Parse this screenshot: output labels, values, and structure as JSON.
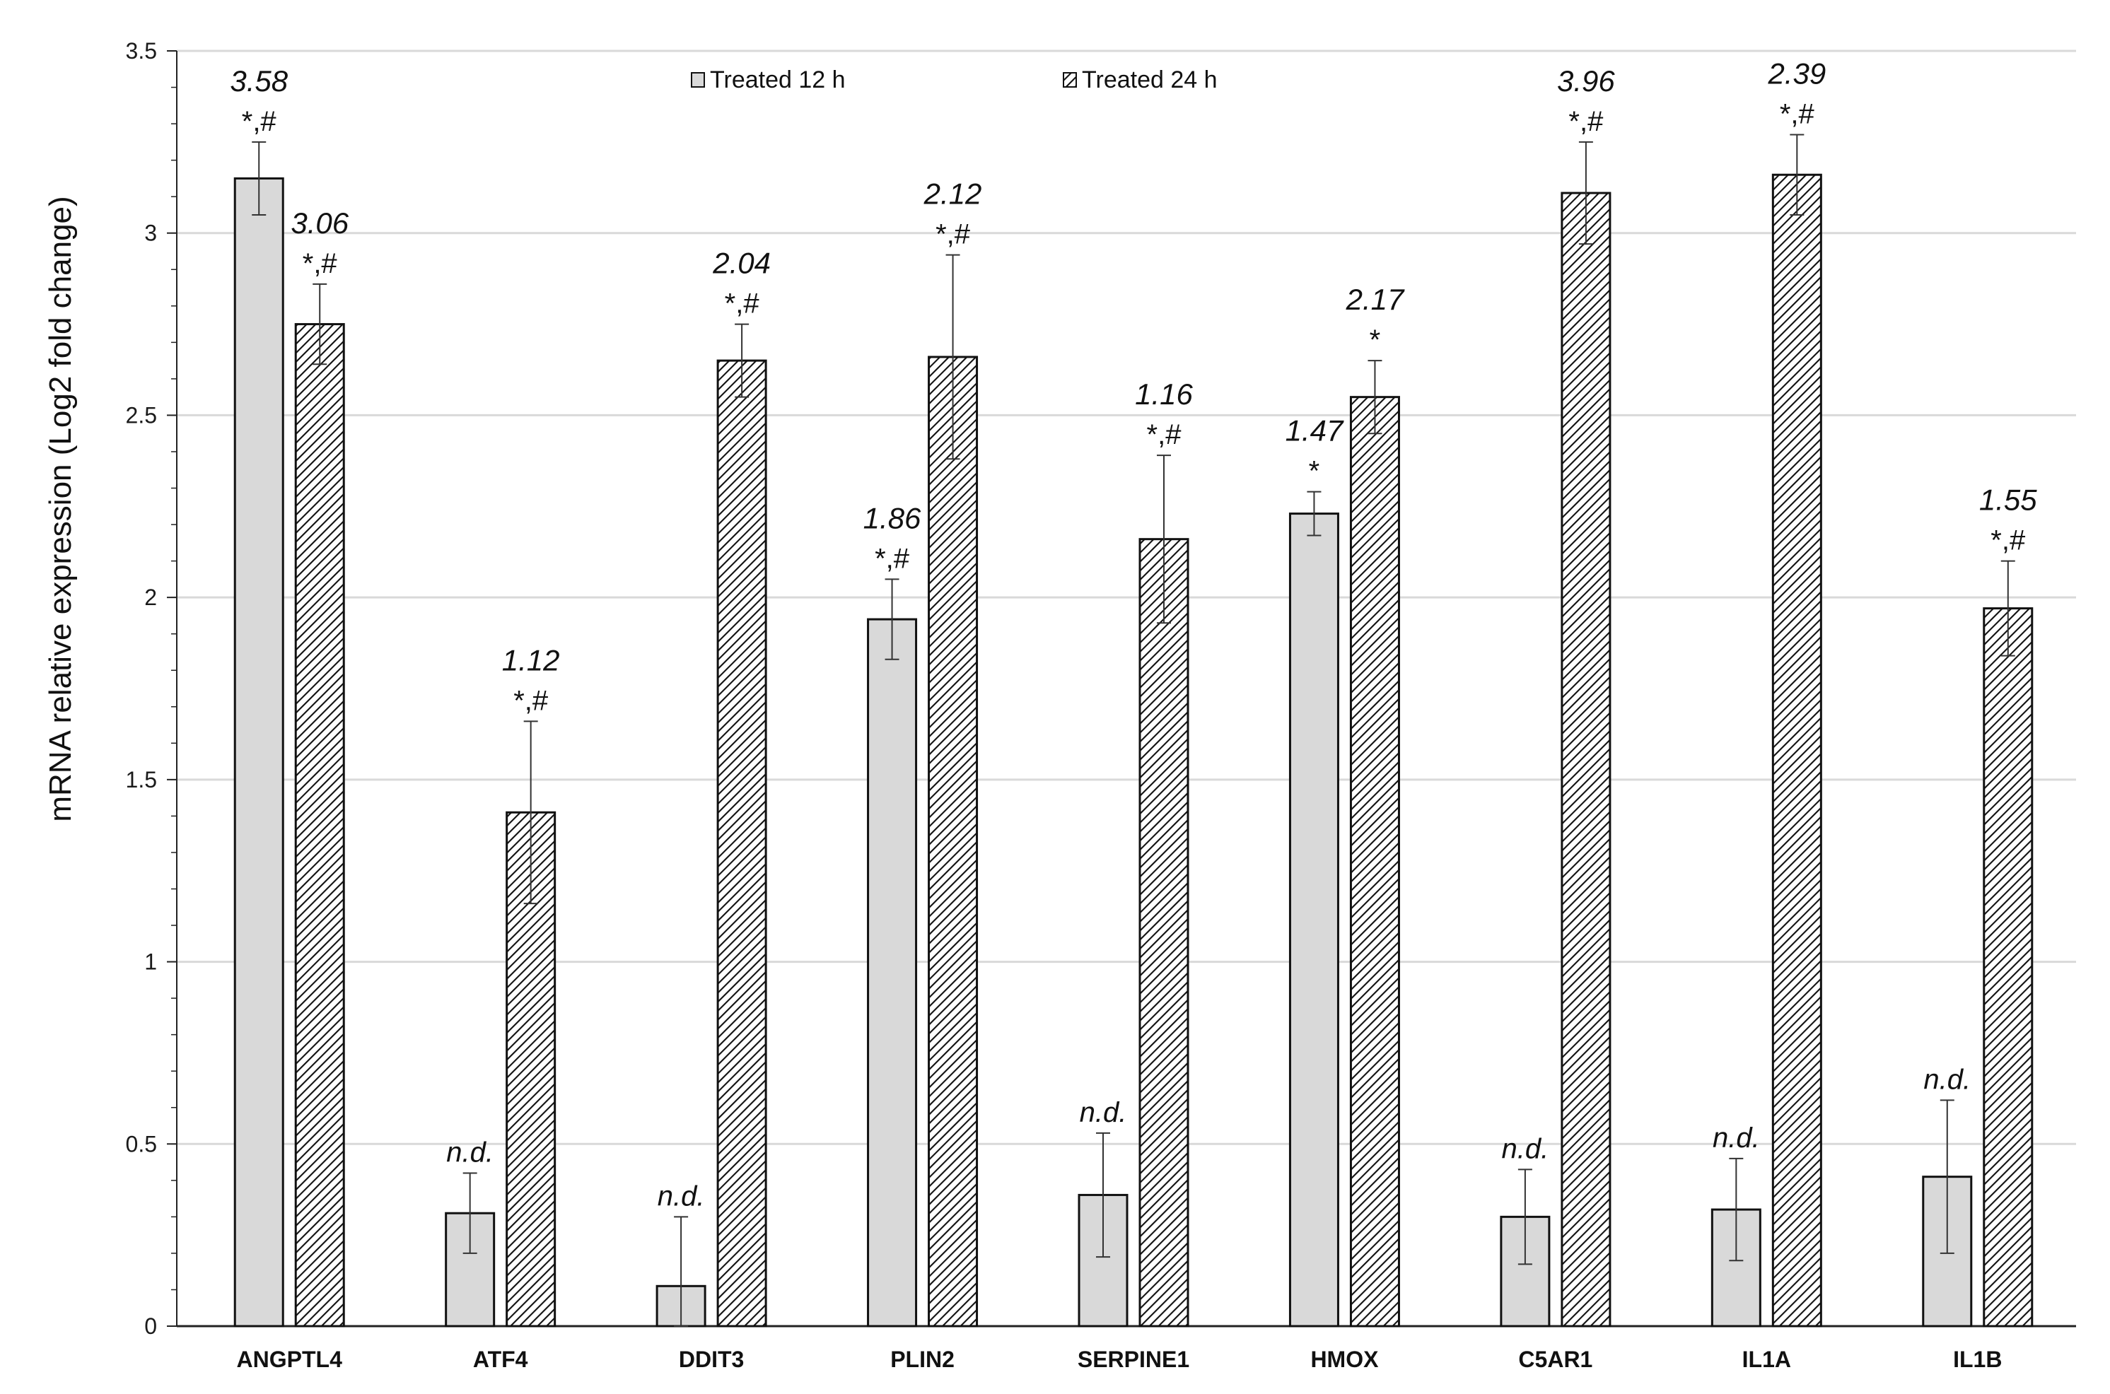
{
  "chart_data": {
    "type": "bar",
    "title": "",
    "xlabel": "",
    "ylabel": "mRNA relative expression (Log2 fold change)",
    "ylim": [
      0,
      3.5
    ],
    "yticks": [
      "0",
      "0.5",
      "1",
      "1.5",
      "2",
      "2.5",
      "3",
      "3.5"
    ],
    "grid": true,
    "legend_position": "top",
    "categories": [
      "ANGPTL4",
      "ATF4",
      "DDIT3",
      "PLIN2",
      "SERPINE1",
      "HMOX",
      "C5AR1",
      "IL1A",
      "IL1B"
    ],
    "series": [
      {
        "name": "Treated 12 h",
        "pattern": "solid",
        "color": "#d9d9d9",
        "values": [
          3.15,
          0.31,
          0.11,
          1.94,
          0.36,
          2.23,
          0.3,
          0.32,
          0.41
        ],
        "errors": [
          0.1,
          0.11,
          0.19,
          0.11,
          0.17,
          0.06,
          0.13,
          0.14,
          0.21
        ],
        "fold_labels": [
          "3.58",
          "",
          "",
          "1.86",
          "",
          "1.47",
          "",
          "",
          ""
        ],
        "sig_labels": [
          "*,#",
          "",
          "",
          "*,#",
          "",
          "*",
          "",
          "",
          ""
        ],
        "nd_labels": [
          "",
          "n.d.",
          "n.d.",
          "",
          "n.d.",
          "",
          "n.d.",
          "n.d.",
          "n.d."
        ]
      },
      {
        "name": "Treated 24 h",
        "pattern": "hatched",
        "color": "#ffffff",
        "values": [
          2.75,
          1.41,
          2.65,
          2.66,
          2.16,
          2.55,
          3.11,
          3.16,
          1.97
        ],
        "errors": [
          0.11,
          0.25,
          0.1,
          0.28,
          0.23,
          0.1,
          0.14,
          0.11,
          0.13
        ],
        "fold_labels": [
          "3.06",
          "1.12",
          "2.04",
          "2.12",
          "1.16",
          "2.17",
          "3.96",
          "2.39",
          "1.55"
        ],
        "sig_labels": [
          "*,#",
          "*,#",
          "*,#",
          "*,#",
          "*,#",
          "*",
          "*,#",
          "*,#",
          "*,#"
        ],
        "nd_labels": [
          "",
          "",
          "",
          "",
          "",
          "",
          "",
          "",
          ""
        ]
      }
    ]
  },
  "colors": {
    "axis": "#222222",
    "grid": "#d9d9d9",
    "bar_outline": "#111111",
    "bar_solid_fill": "#d9d9d9",
    "hatch": "#111111"
  }
}
